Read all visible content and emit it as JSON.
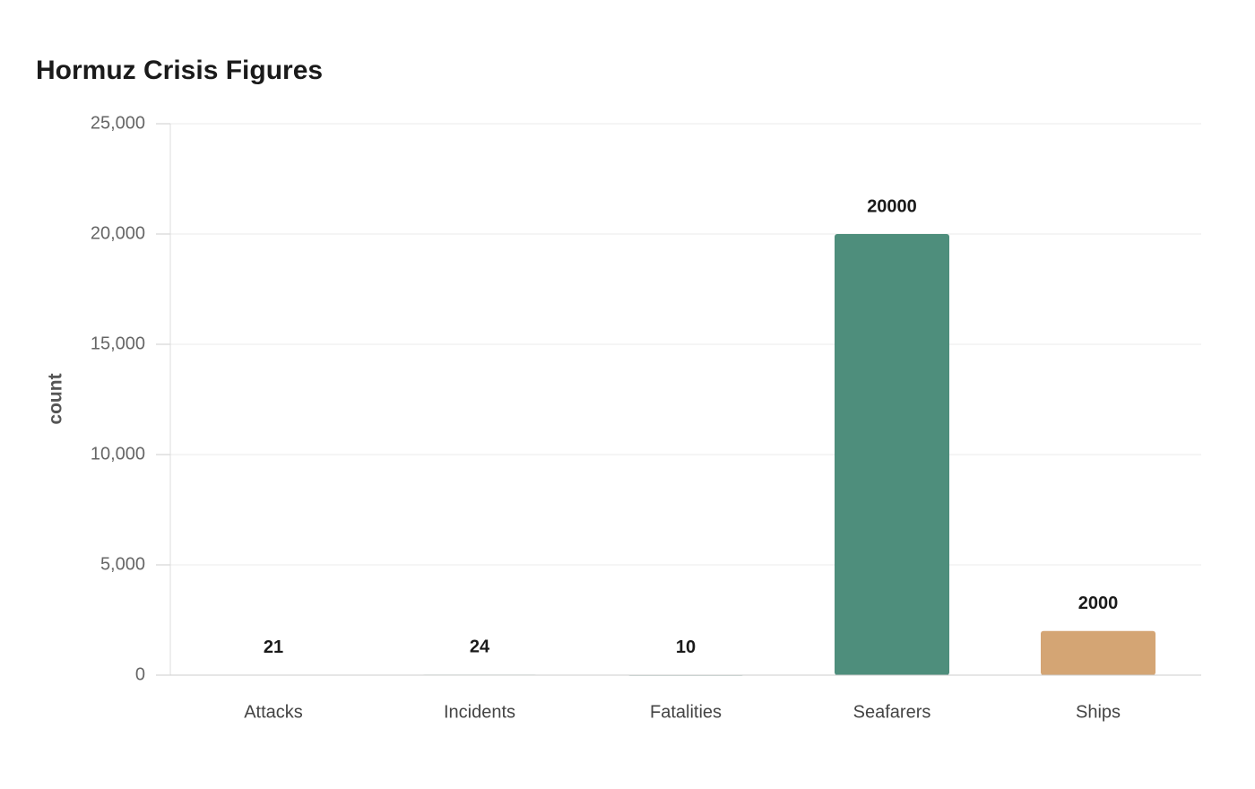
{
  "chart_data": {
    "type": "bar",
    "title": "Hormuz Crisis Figures",
    "y_label": "count",
    "categories": [
      "Attacks",
      "Incidents",
      "Fatalities",
      "Seafarers",
      "Ships"
    ],
    "values": [
      21,
      24,
      10,
      20000,
      2000
    ],
    "colors": [
      "#9bbcb1",
      "#b9c9c3",
      "#9bbcb1",
      "#4e8e7c",
      "#d4a574"
    ],
    "ylim": [
      0,
      25000
    ],
    "yticks": [
      0,
      {
        "value": 5000,
        "label": "5,000"
      },
      {
        "value": 10000,
        "label": "10,000"
      },
      {
        "value": 15000,
        "label": "15,000"
      },
      {
        "value": 20000,
        "label": "20,000"
      },
      {
        "value": 25000,
        "label": "25,000"
      }
    ],
    "grid": true
  }
}
